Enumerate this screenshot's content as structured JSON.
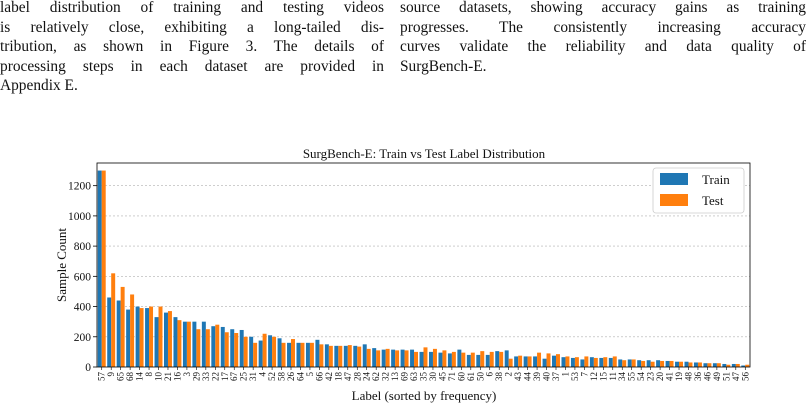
{
  "paper": {
    "left_column": [
      "label distribution of training and testing videos",
      "is relatively close, exhibiting a long-tailed dis-",
      "tribution, as shown in Figure 3. The details of",
      "processing steps in each dataset are provided in",
      "Appendix E."
    ],
    "right_column": [
      "source datasets, showing accuracy gains as training",
      "progresses. The consistently increasing accuracy",
      "curves validate the reliability and data quality of",
      "SurgBench-E."
    ]
  },
  "chart_data": {
    "type": "bar",
    "title": "SurgBench-E: Train vs Test Label Distribution",
    "xlabel": "Label (sorted by frequency)",
    "ylabel": "Sample Count",
    "ylim": [
      0,
      1350
    ],
    "yticks": [
      0,
      200,
      400,
      600,
      800,
      1000,
      1200
    ],
    "grid": "y",
    "legend": "top-right",
    "colors": {
      "Train": "#1f77b4",
      "Test": "#ff7f0e"
    },
    "categories": [
      "57",
      "9",
      "65",
      "68",
      "14",
      "8",
      "10",
      "21",
      "16",
      "3",
      "29",
      "33",
      "22",
      "17",
      "67",
      "25",
      "31",
      "4",
      "52",
      "58",
      "26",
      "64",
      "5",
      "66",
      "42",
      "18",
      "47",
      "28",
      "24",
      "62",
      "32",
      "13",
      "69",
      "63",
      "35",
      "30",
      "45",
      "71",
      "60",
      "61",
      "50",
      "6",
      "38",
      "2",
      "43",
      "44",
      "39",
      "40",
      "37",
      "1",
      "53",
      "7",
      "12",
      "15",
      "11",
      "34",
      "55",
      "54",
      "23",
      "20",
      "41",
      "19",
      "48",
      "36",
      "46",
      "49",
      "51",
      "47",
      "56"
    ],
    "series": [
      {
        "name": "Train",
        "values": [
          1300,
          460,
          440,
          380,
          400,
          390,
          330,
          360,
          330,
          300,
          300,
          300,
          270,
          265,
          250,
          245,
          200,
          175,
          210,
          190,
          160,
          160,
          160,
          180,
          150,
          140,
          140,
          140,
          150,
          125,
          115,
          115,
          115,
          115,
          100,
          100,
          95,
          90,
          115,
          80,
          80,
          80,
          105,
          110,
          70,
          70,
          70,
          55,
          75,
          65,
          60,
          50,
          65,
          60,
          60,
          50,
          50,
          45,
          45,
          45,
          40,
          35,
          35,
          30,
          25,
          25,
          20,
          20,
          10
        ]
      },
      {
        "name": "Test",
        "values": [
          1300,
          620,
          530,
          480,
          390,
          400,
          400,
          370,
          310,
          300,
          250,
          250,
          280,
          230,
          225,
          200,
          160,
          220,
          200,
          160,
          185,
          160,
          160,
          150,
          140,
          140,
          145,
          135,
          120,
          110,
          120,
          110,
          110,
          100,
          130,
          120,
          110,
          100,
          95,
          95,
          105,
          100,
          100,
          55,
          75,
          70,
          95,
          90,
          85,
          70,
          65,
          70,
          60,
          65,
          70,
          45,
          50,
          40,
          35,
          40,
          40,
          35,
          30,
          30,
          25,
          25,
          15,
          20,
          15
        ]
      }
    ]
  }
}
